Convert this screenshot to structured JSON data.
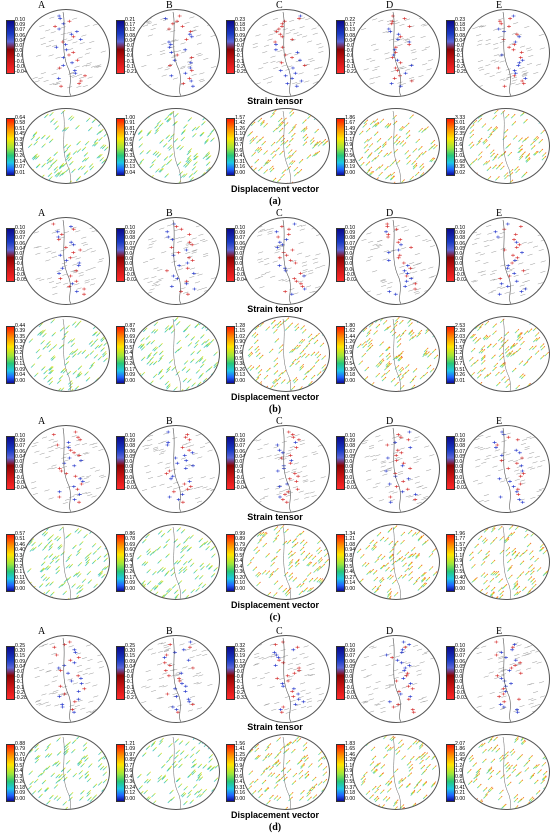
{
  "panel_labels": [
    "A",
    "B",
    "C",
    "D",
    "E"
  ],
  "row_titles": {
    "strain": "Strain tensor",
    "displacement": "Displacement vector"
  },
  "groups": [
    {
      "label": "(a)",
      "strain_ticks": [
        [
          "0.10",
          "0.09",
          "0.07",
          "0.06",
          "0.04",
          "0.03",
          "0.02",
          "-0.00",
          "-0.01",
          "-0.03",
          "-0.04"
        ],
        [
          "0.21",
          "0.17",
          "0.12",
          "0.08",
          "0.04",
          "-0.00",
          "-0.05",
          "-0.09",
          "-0.13",
          "-0.17",
          "-0.21"
        ],
        [
          "0.23",
          "0.18",
          "0.13",
          "0.09",
          "0.04",
          "-0.01",
          "-0.05",
          "-0.10",
          "-0.15",
          "-0.20",
          "-0.25"
        ],
        [
          "0.22",
          "0.17",
          "0.13",
          "0.08",
          "0.04",
          "-0.01",
          "-0.05",
          "-0.09",
          "-0.13",
          "-0.18",
          "-0.22"
        ],
        [
          "0.23",
          "0.18",
          "0.13",
          "0.08",
          "0.04",
          "-0.01",
          "-0.06",
          "-0.11",
          "-0.15",
          "-0.20",
          "-0.25"
        ]
      ],
      "disp_ticks": [
        [
          "0.64",
          "0.58",
          "0.51",
          "0.45",
          "0.39",
          "0.32",
          "0.26",
          "0.20",
          "0.14",
          "0.07",
          "0.01"
        ],
        [
          "1.00",
          "0.91",
          "0.81",
          "0.71",
          "0.62",
          "0.52",
          "0.42",
          "0.33",
          "0.23",
          "0.13",
          "0.04"
        ],
        [
          "1.57",
          "1.42",
          "1.26",
          "1.10",
          "0.95",
          "0.79",
          "0.63",
          "0.47",
          "0.31",
          "0.16",
          "0.00"
        ],
        [
          "1.86",
          "1.67",
          "1.49",
          "1.30",
          "1.12",
          "0.93",
          "0.75",
          "0.56",
          "0.38",
          "0.19",
          "0.00"
        ],
        [
          "3.33",
          "3.01",
          "2.68",
          "2.35",
          "2.01",
          "1.68",
          "1.35",
          "1.02",
          "0.68",
          "0.35",
          "0.02"
        ]
      ]
    },
    {
      "label": "(b)",
      "strain_ticks": [
        [
          "0.10",
          "0.09",
          "0.07",
          "0.06",
          "0.04",
          "0.03",
          "0.01",
          "-0.00",
          "-0.02",
          "-0.04",
          "-0.05"
        ],
        [
          "0.10",
          "0.09",
          "0.08",
          "0.07",
          "0.05",
          "0.04",
          "0.03",
          "0.02",
          "0.01",
          "-0.01",
          "-0.02"
        ],
        [
          "0.10",
          "0.09",
          "0.07",
          "0.06",
          "0.05",
          "0.03",
          "0.02",
          "0.01",
          "-0.01",
          "-0.02",
          "-0.04"
        ],
        [
          "0.10",
          "0.09",
          "0.08",
          "0.07",
          "0.05",
          "0.04",
          "0.03",
          "0.02",
          "0.00",
          "-0.01",
          "-0.02"
        ],
        [
          "0.10",
          "0.09",
          "0.08",
          "0.06",
          "0.05",
          "0.04",
          "0.03",
          "0.02",
          "0.01",
          "-0.01",
          "-0.02"
        ]
      ],
      "disp_ticks": [
        [
          "0.44",
          "0.39",
          "0.35",
          "0.30",
          "0.26",
          "0.22",
          "0.17",
          "0.13",
          "0.09",
          "0.04",
          "0.00"
        ],
        [
          "0.87",
          "0.78",
          "0.69",
          "0.61",
          "0.52",
          "0.43",
          "0.35",
          "0.26",
          "0.17",
          "0.09",
          "0.00"
        ],
        [
          "1.28",
          "1.15",
          "1.02",
          "0.90",
          "0.77",
          "0.64",
          "0.51",
          "0.38",
          "0.26",
          "0.13",
          "0.00"
        ],
        [
          "1.80",
          "1.62",
          "1.44",
          "1.26",
          "1.08",
          "0.90",
          "0.72",
          "0.54",
          "0.36",
          "0.18",
          "0.00"
        ],
        [
          "2.53",
          "2.28",
          "2.03",
          "1.78",
          "1.52",
          "1.27",
          "1.02",
          "0.77",
          "0.51",
          "0.26",
          "0.01"
        ]
      ]
    },
    {
      "label": "(c)",
      "strain_ticks": [
        [
          "0.10",
          "0.09",
          "0.07",
          "0.06",
          "0.04",
          "0.03",
          "0.02",
          "0.00",
          "-0.01",
          "-0.03",
          "-0.04"
        ],
        [
          "0.10",
          "0.09",
          "0.08",
          "0.06",
          "0.05",
          "0.04",
          "0.03",
          "0.02",
          "0.00",
          "-0.01",
          "-0.02"
        ],
        [
          "0.10",
          "0.09",
          "0.07",
          "0.06",
          "0.04",
          "0.03",
          "0.01",
          "-0.00",
          "-0.02",
          "-0.03",
          "-0.04"
        ],
        [
          "0.10",
          "0.09",
          "0.08",
          "0.07",
          "0.05",
          "0.04",
          "0.03",
          "0.02",
          "0.01",
          "-0.00",
          "-0.02"
        ],
        [
          "0.10",
          "0.09",
          "0.08",
          "0.07",
          "0.05",
          "0.04",
          "0.03",
          "0.02",
          "0.01",
          "-0.00",
          "-0.02"
        ]
      ],
      "disp_ticks": [
        [
          "0.57",
          "0.51",
          "0.46",
          "0.40",
          "0.34",
          "0.29",
          "0.23",
          "0.17",
          "0.11",
          "0.06",
          "0.00"
        ],
        [
          "0.86",
          "0.78",
          "0.69",
          "0.60",
          "0.52",
          "0.43",
          "0.35",
          "0.26",
          "0.17",
          "0.09",
          "0.00"
        ],
        [
          "0.99",
          "0.89",
          "0.79",
          "0.69",
          "0.59",
          "0.49",
          "0.40",
          "0.30",
          "0.20",
          "0.10",
          "0.00"
        ],
        [
          "1.34",
          "1.21",
          "1.08",
          "0.94",
          "0.81",
          "0.67",
          "0.54",
          "0.40",
          "0.27",
          "0.14",
          "0.00"
        ],
        [
          "1.96",
          "1.77",
          "1.57",
          "1.37",
          "1.18",
          "0.98",
          "0.79",
          "0.59",
          "0.40",
          "0.20",
          "0.00"
        ]
      ]
    },
    {
      "label": "(d)",
      "strain_ticks": [
        [
          "0.25",
          "0.20",
          "0.15",
          "0.09",
          "0.04",
          "-0.01",
          "-0.07",
          "-0.12",
          "-0.17",
          "-0.23",
          "-0.28"
        ],
        [
          "0.25",
          "0.20",
          "0.15",
          "0.09",
          "0.04",
          "-0.01",
          "-0.06",
          "-0.11",
          "-0.17",
          "-0.22",
          "-0.27"
        ],
        [
          "0.32",
          "0.25",
          "0.19",
          "0.12",
          "0.06",
          "-0.01",
          "-0.07",
          "-0.14",
          "-0.20",
          "-0.27",
          "-0.33"
        ],
        [
          "0.10",
          "0.09",
          "0.07",
          "0.06",
          "0.05",
          "0.03",
          "0.02",
          "0.01",
          "-0.01",
          "-0.02",
          "-0.03"
        ],
        [
          "0.10",
          "0.09",
          "0.07",
          "0.06",
          "0.05",
          "0.03",
          "0.02",
          "0.01",
          "-0.01",
          "-0.02",
          "-0.03"
        ]
      ],
      "disp_ticks": [
        [
          "0.88",
          "0.79",
          "0.70",
          "0.61",
          "0.53",
          "0.44",
          "0.35",
          "0.26",
          "0.18",
          "0.09",
          "0.00"
        ],
        [
          "1.21",
          "1.09",
          "0.97",
          "0.85",
          "0.73",
          "0.61",
          "0.48",
          "0.36",
          "0.24",
          "0.12",
          "0.00"
        ],
        [
          "1.56",
          "1.41",
          "1.25",
          "1.09",
          "0.94",
          "0.78",
          "0.63",
          "0.47",
          "0.31",
          "0.16",
          "0.00"
        ],
        [
          "1.83",
          "1.65",
          "1.46",
          "1.28",
          "1.10",
          "0.92",
          "0.73",
          "0.55",
          "0.37",
          "0.18",
          "0.00"
        ],
        [
          "2.07",
          "1.86",
          "1.65",
          "1.45",
          "1.24",
          "1.03",
          "0.83",
          "0.62",
          "0.41",
          "0.21",
          "0.00"
        ]
      ]
    }
  ]
}
